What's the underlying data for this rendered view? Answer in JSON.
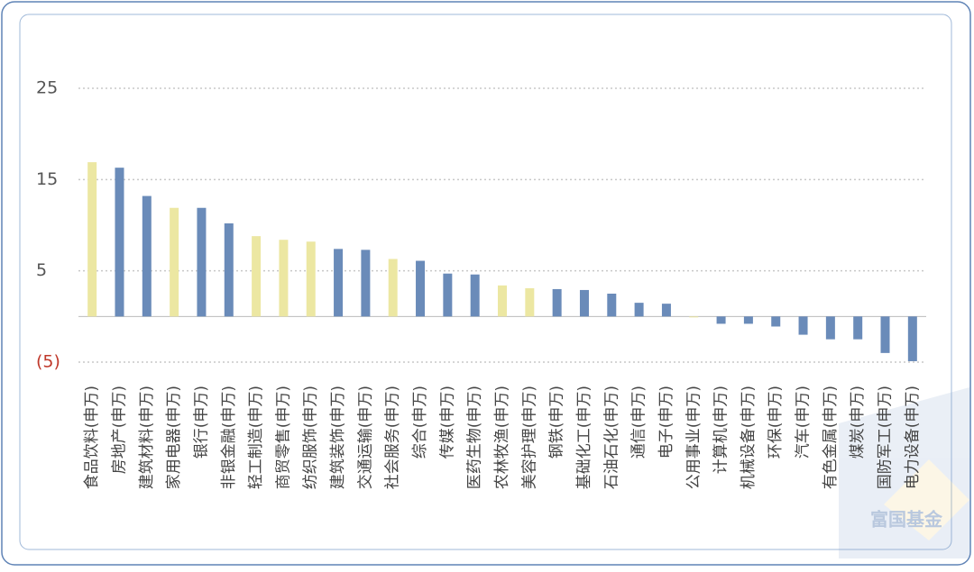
{
  "chart_data": {
    "type": "bar",
    "categories": [
      "食品饮料(申万)",
      "房地产(申万)",
      "建筑材料(申万)",
      "家用电器(申万)",
      "银行(申万)",
      "非银金融(申万)",
      "轻工制造(申万)",
      "商贸零售(申万)",
      "纺织服饰(申万)",
      "建筑装饰(申万)",
      "交通运输(申万)",
      "社会服务(申万)",
      "综合(申万)",
      "传媒(申万)",
      "医药生物(申万)",
      "农林牧渔(申万)",
      "美容护理(申万)",
      "钢铁(申万)",
      "基础化工(申万)",
      "石油石化(申万)",
      "通信(申万)",
      "电子(申万)",
      "公用事业(申万)",
      "计算机(申万)",
      "机械设备(申万)",
      "环保(申万)",
      "汽车(申万)",
      "有色金属(申万)",
      "煤炭(申万)",
      "国防军工(申万)",
      "电力设备(申万)"
    ],
    "values": [
      16.9,
      16.3,
      13.2,
      11.9,
      11.9,
      10.2,
      8.8,
      8.4,
      8.2,
      7.4,
      7.3,
      6.3,
      6.1,
      4.7,
      4.6,
      3.4,
      3.1,
      3.0,
      2.9,
      2.5,
      1.5,
      1.4,
      -0.1,
      -0.8,
      -0.8,
      -1.1,
      -2.0,
      -2.5,
      -2.5,
      -4.0,
      -4.9
    ],
    "colors": [
      "#ece7a2",
      "#6a8bb9",
      "#6a8bb9",
      "#ece7a2",
      "#6a8bb9",
      "#6a8bb9",
      "#ece7a2",
      "#ece7a2",
      "#ece7a2",
      "#6a8bb9",
      "#6a8bb9",
      "#ece7a2",
      "#6a8bb9",
      "#6a8bb9",
      "#6a8bb9",
      "#ece7a2",
      "#ece7a2",
      "#6a8bb9",
      "#6a8bb9",
      "#6a8bb9",
      "#6a8bb9",
      "#6a8bb9",
      "#ece7a2",
      "#6a8bb9",
      "#6a8bb9",
      "#6a8bb9",
      "#6a8bb9",
      "#6a8bb9",
      "#6a8bb9",
      "#6a8bb9",
      "#6a8bb9"
    ],
    "ylim": [
      -5,
      25
    ],
    "yticks": [
      25,
      15,
      5,
      {
        "value": -5,
        "label": "(5)"
      }
    ],
    "grid": true,
    "watermark": "富国基金"
  }
}
